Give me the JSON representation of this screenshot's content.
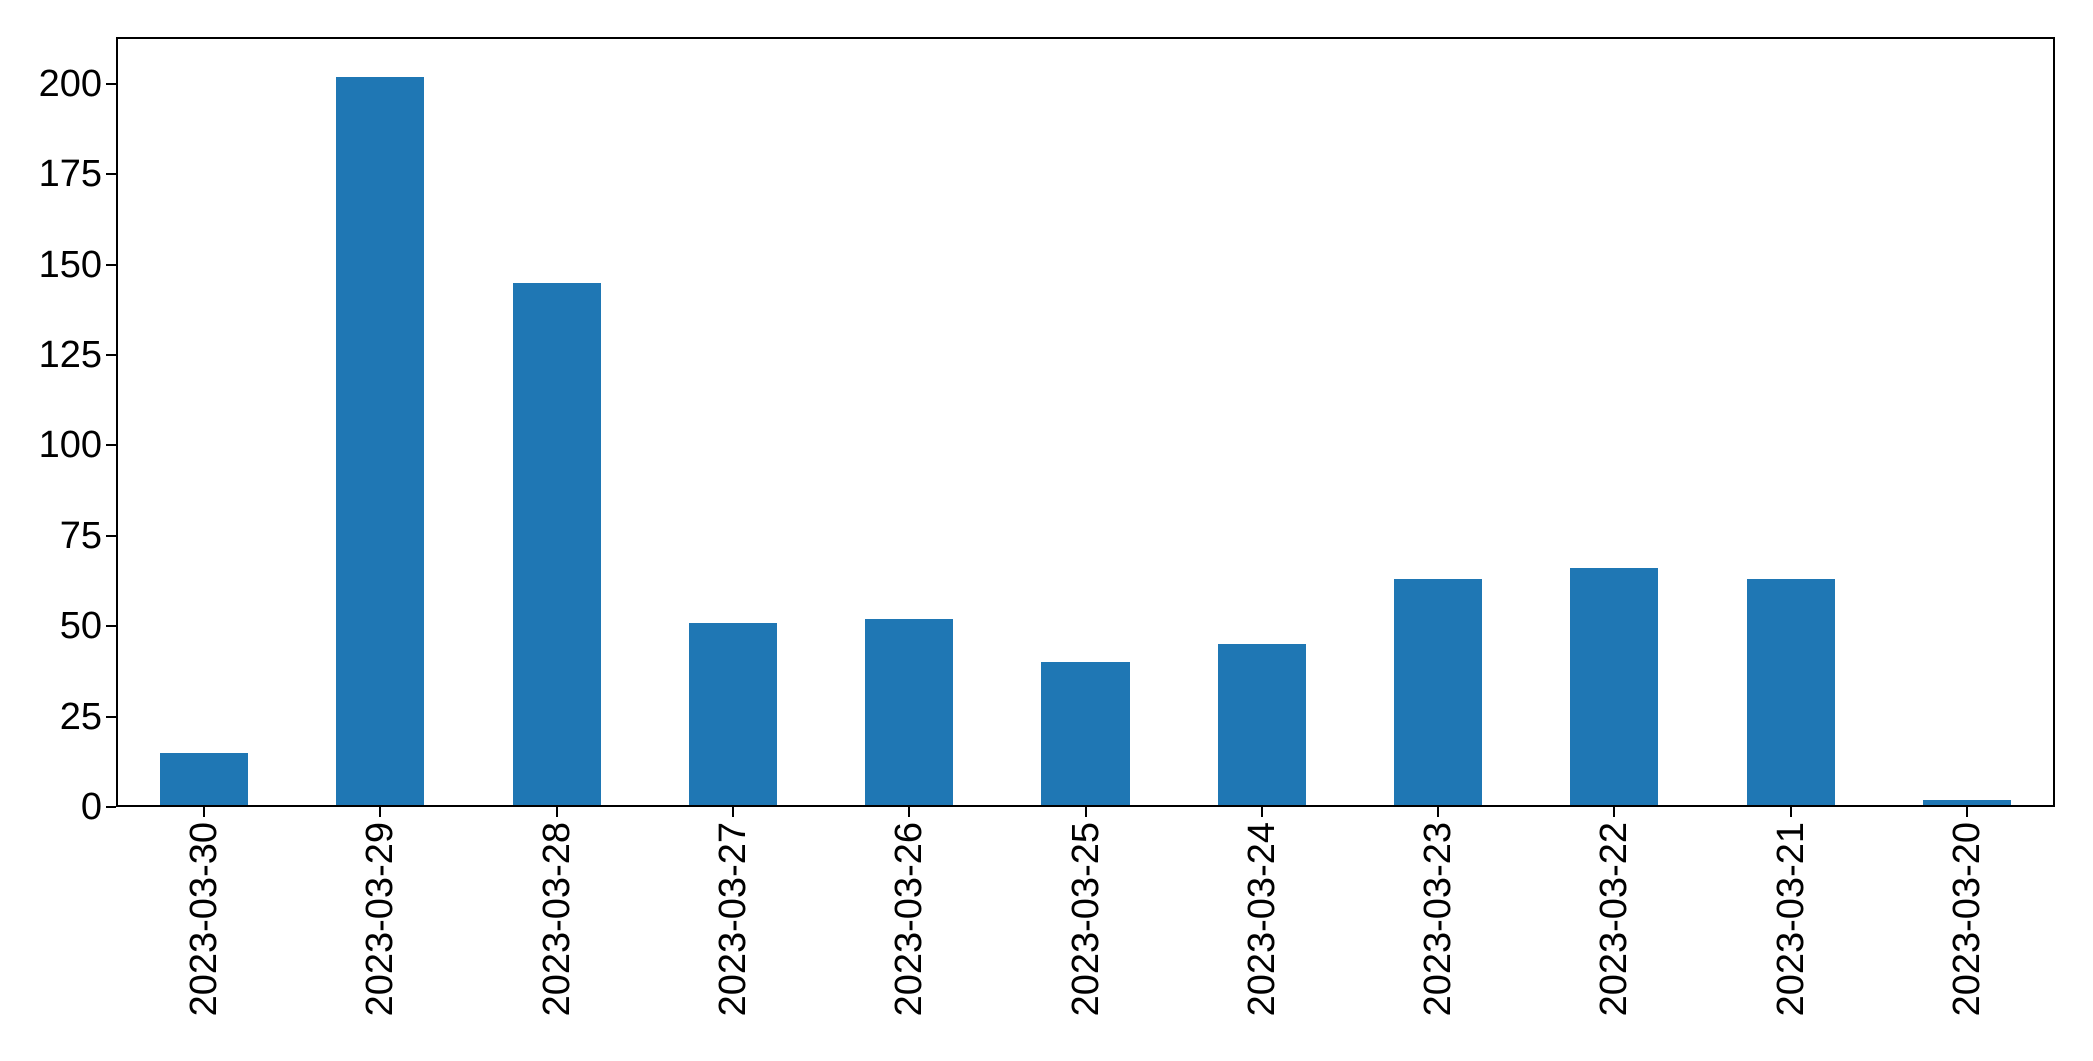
{
  "chart_data": {
    "type": "bar",
    "title": "",
    "xlabel": "",
    "ylabel": "",
    "categories": [
      "2023-03-30",
      "2023-03-29",
      "2023-03-28",
      "2023-03-27",
      "2023-03-26",
      "2023-03-25",
      "2023-03-24",
      "2023-03-23",
      "2023-03-22",
      "2023-03-21",
      "2023-03-20"
    ],
    "values": [
      15,
      202,
      145,
      51,
      52,
      40,
      45,
      63,
      66,
      63,
      2
    ],
    "yticks": [
      0,
      25,
      50,
      75,
      100,
      125,
      150,
      175,
      200
    ],
    "ylim": [
      0,
      213
    ],
    "x_tick_rotation": 90,
    "bar_width_fraction": 0.5,
    "grid": false,
    "legend": false,
    "colors": {
      "bar": "#1f77b4",
      "axis": "#000000",
      "text": "#000000",
      "background": "#ffffff"
    }
  }
}
